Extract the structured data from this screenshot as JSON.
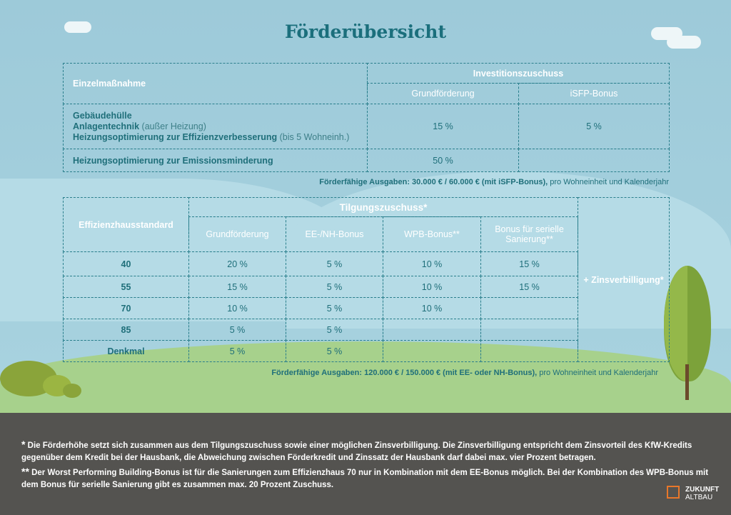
{
  "title": "Förderübersicht",
  "table1": {
    "col_header": "Einzelmaßnahme",
    "group_header": "Investitionszuschuss",
    "sub_headers": [
      "Grundförderung",
      "iSFP-Bonus"
    ],
    "rows": [
      {
        "lines": [
          {
            "bold": "Gebäudehülle",
            "light": ""
          },
          {
            "bold": "Anlagentechnik",
            "light": " (außer Heizung)"
          },
          {
            "bold": "Heizungsoptimierung zur Effizienzverbesserung",
            "light": " (bis 5 Wohneinh.)"
          }
        ],
        "values": [
          "15 %",
          "5 %"
        ]
      },
      {
        "lines": [
          {
            "bold": "Heizungsoptimierung zur Emissionsminderung",
            "light": ""
          }
        ],
        "values": [
          "50 %",
          ""
        ]
      }
    ],
    "note_bold": "Förderfähige Ausgaben: 30.000 € / 60.000 € (mit iSFP-Bonus),",
    "note_light": " pro Wohneinheit und Kalenderjahr"
  },
  "table2": {
    "col_header": "Effizienzhausstandard",
    "group_header": "Tilgungszuschuss*",
    "sub_headers": [
      "Grundförderung",
      "EE-/NH-Bonus",
      "WPB-Bonus**",
      "Bonus für serielle Sanierung**"
    ],
    "rows": [
      {
        "label": "40",
        "values": [
          "20 %",
          "5 %",
          "10 %",
          "15 %"
        ]
      },
      {
        "label": "55",
        "values": [
          "15 %",
          "5 %",
          "10 %",
          "15 %"
        ]
      },
      {
        "label": "70",
        "values": [
          "10 %",
          "5 %",
          "10 %",
          ""
        ]
      },
      {
        "label": "85",
        "values": [
          "5 %",
          "5 %",
          "",
          ""
        ]
      },
      {
        "label": "Denkmal",
        "values": [
          "5 %",
          "5 %",
          "",
          ""
        ]
      }
    ],
    "side_label": "+ Zinsverbilligung*",
    "note_bold": "Förderfähige Ausgaben: 120.000 € / 150.000 € (mit EE- oder NH-Bonus),",
    "note_light": " pro Wohneinheit und Kalenderjahr"
  },
  "footnotes": [
    {
      "mark": "*",
      "text": "Die Förderhöhe setzt sich zusammen aus dem Tilgungszuschuss sowie einer möglichen Zinsverbilligung. Die Zinsverbilligung entspricht dem Zinsvorteil des KfW-Kredits gegenüber dem Kredit bei der Hausbank, die Abweichung zwischen Förderkredit und Zinssatz der Hausbank darf dabei max. vier Prozent betragen."
    },
    {
      "mark": "**",
      "text": "Der Worst Performing Building-Bonus ist für die Sanierungen zum Effizienzhaus 70 nur in Kombination mit dem EE-Bonus möglich. Bei der Kombination des WPB-Bonus mit dem Bonus für serielle Sanierung gibt es zusammen max. 20 Prozent Zuschuss."
    }
  ],
  "logo": {
    "line1": "ZUKUNFT",
    "line2": "ALTBAU"
  },
  "colors": {
    "teal": "#1f6f7a",
    "sky": "#9dcad9",
    "ground": "#a7d18c",
    "footer": "#545350",
    "logo_accent": "#e8772a"
  }
}
